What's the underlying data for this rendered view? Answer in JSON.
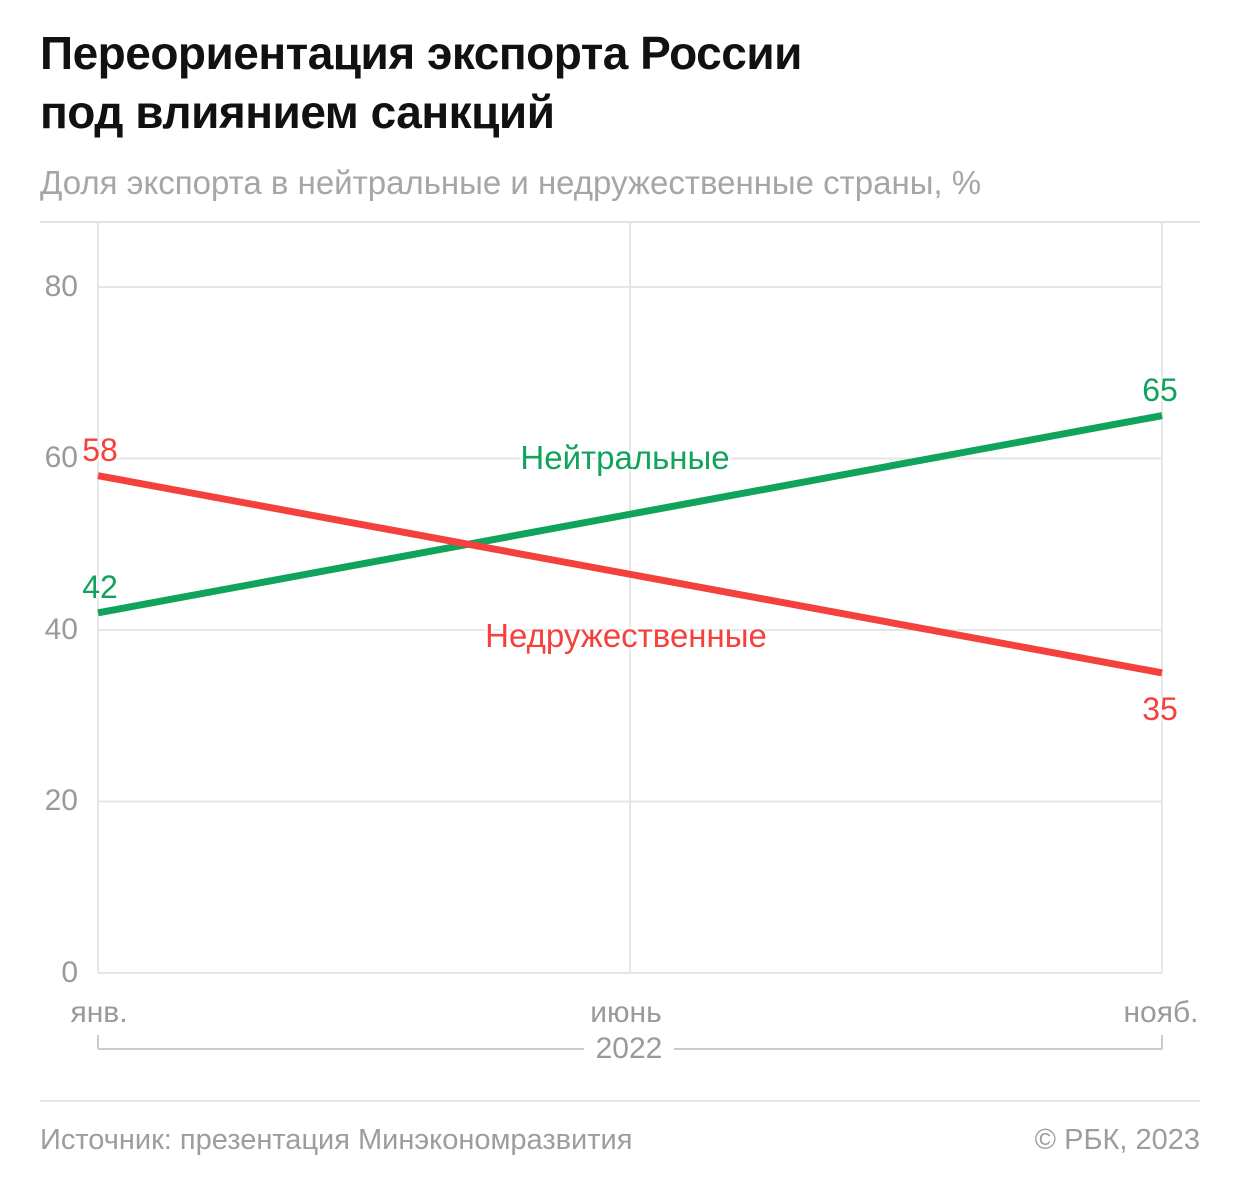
{
  "page": {
    "title_line1": "Переориентация экспорта России",
    "title_line2": "под влиянием санкций",
    "subtitle": "Доля экспорта в нейтральные и недружественные страны, %",
    "source": "Источник: презентация Минэкономразвития",
    "copyright": "© РБК, 2023"
  },
  "chart_data": {
    "type": "line",
    "title": "Переориентация экспорта России под влиянием санкций",
    "subtitle": "Доля экспорта в нейтральные и недружественные страны, %",
    "unit": "%",
    "x_categories": [
      "янв.",
      "июнь",
      "нояб."
    ],
    "x_period_label": "2022",
    "yticks": [
      0,
      20,
      40,
      60,
      80
    ],
    "ytick_labels": [
      "0",
      "20",
      "40",
      "60",
      "80"
    ],
    "ylim": [
      0,
      87
    ],
    "grid": true,
    "legend_position": "inline-on-lines",
    "series": [
      {
        "name": "Нейтральные",
        "color": "#10a35c",
        "x": [
          "янв.",
          "нояб."
        ],
        "values": [
          42,
          65
        ],
        "value_labels": [
          "42",
          "65"
        ],
        "end_label_position": "above"
      },
      {
        "name": "Недружественные",
        "color": "#f5413d",
        "x": [
          "янв.",
          "нояб."
        ],
        "values": [
          58,
          35
        ],
        "value_labels": [
          "58",
          "35"
        ],
        "end_label_position": "below"
      }
    ]
  }
}
